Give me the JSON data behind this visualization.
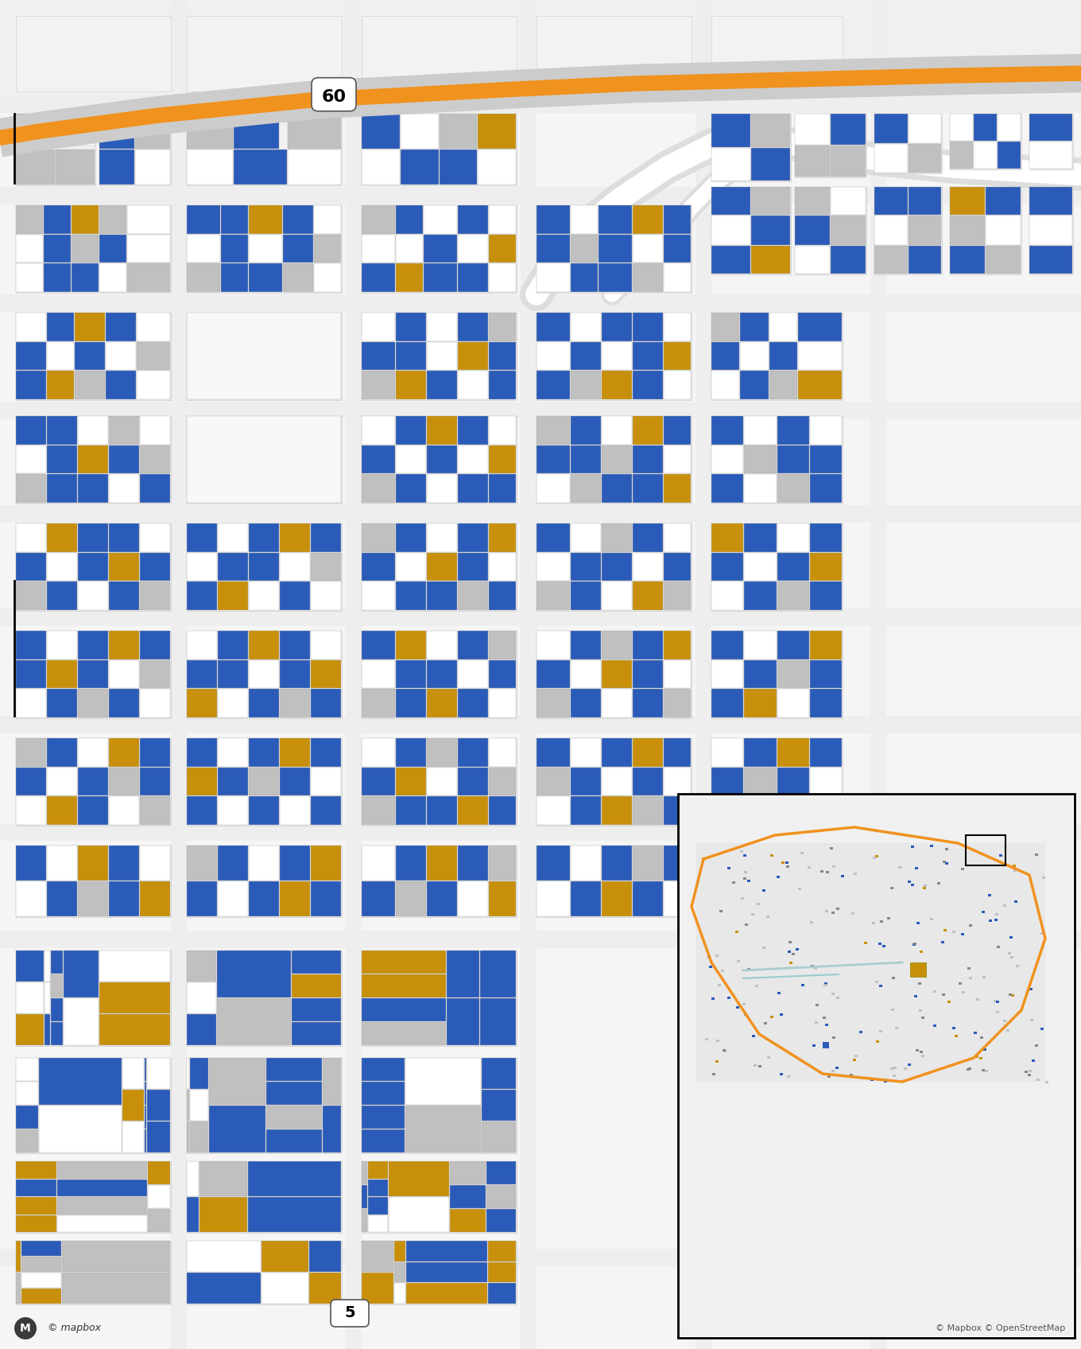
{
  "fig_width": 13.6,
  "fig_height": 16.96,
  "dpi": 100,
  "bg_color": "#e8e8e8",
  "map_bg": "#f5f5f5",
  "colors": {
    "cleaned": "#2B5BB8",
    "not_standard": "#C8900A",
    "not_cleaned": "#C0C0C0",
    "white": "#FFFFFF",
    "street": "#FFFFFF",
    "block_bg": "#F0F0F0",
    "highway_orange": "#F0921E",
    "highway_gray": "#CCCCCC",
    "highway_bg": "#E0E0E0"
  },
  "route60": "60",
  "route5": "5",
  "mapbox_text": "© mapbox",
  "osm_text": "© Mapbox © OpenStreetMap"
}
